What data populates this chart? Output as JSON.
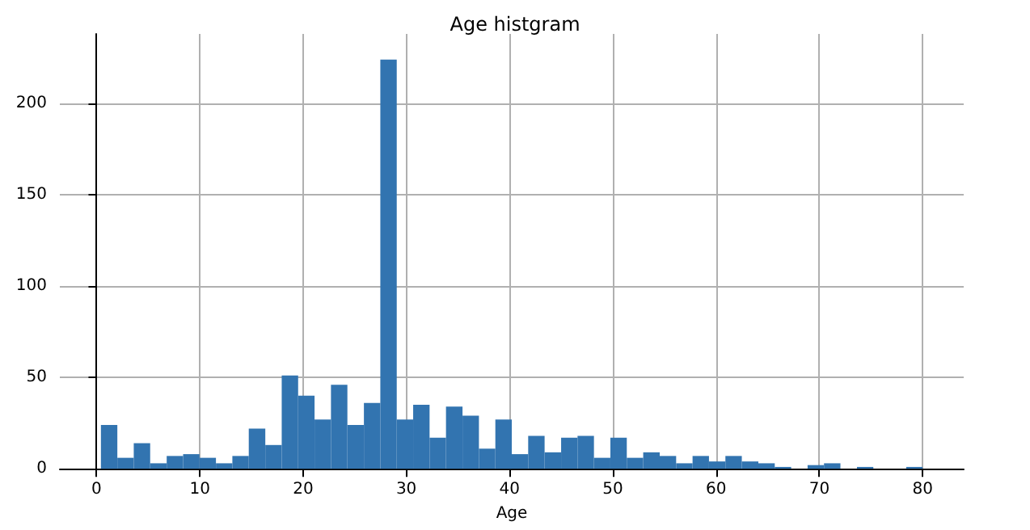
{
  "chart_data": {
    "type": "histogram",
    "title": "Age histgram",
    "xlabel": "Age",
    "color": "#3274b0",
    "bins": [
      0.42,
      2.01,
      3.6,
      5.19,
      6.79,
      8.38,
      9.97,
      11.56,
      13.15,
      14.74,
      16.34,
      17.93,
      19.52,
      21.11,
      22.7,
      24.29,
      25.89,
      27.48,
      29.07,
      30.66,
      32.25,
      33.84,
      35.44,
      37.03,
      38.62,
      40.21,
      41.8,
      43.39,
      44.99,
      46.58,
      48.17,
      49.76,
      51.35,
      52.94,
      54.54,
      56.13,
      57.72,
      59.31,
      60.9,
      62.49,
      64.09,
      65.68,
      67.27,
      68.86,
      70.45,
      72.04,
      73.64,
      75.23,
      76.82,
      78.41,
      80.0
    ],
    "values": [
      24,
      6,
      14,
      3,
      7,
      8,
      6,
      3,
      7,
      22,
      13,
      51,
      40,
      27,
      46,
      24,
      36,
      224,
      27,
      35,
      17,
      34,
      29,
      11,
      27,
      8,
      18,
      9,
      17,
      18,
      6,
      17,
      6,
      9,
      7,
      3,
      7,
      4,
      7,
      4,
      3,
      1,
      0,
      2,
      3,
      0,
      1,
      0,
      0,
      1
    ],
    "xlim": [
      -3.56,
      83.98
    ],
    "xticks": [
      0,
      10,
      20,
      30,
      40,
      50,
      60,
      70,
      80
    ],
    "ylim": [
      0,
      238
    ],
    "yticks": [
      0,
      50,
      100,
      150,
      200
    ],
    "grid": true
  }
}
